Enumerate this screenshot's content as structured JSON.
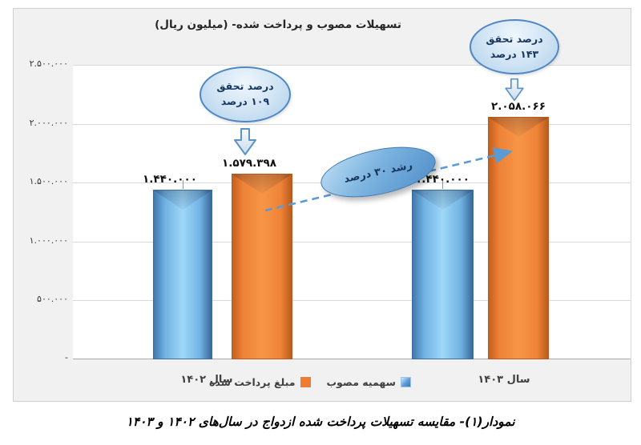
{
  "title": "تسهیلات مصوب و پرداخت شده- (میلیون ریال)",
  "caption": "نمودار(۱)- مقایسه تسهیلات پرداخت شده ازدواج در سال‌های ۱۴۰۲ و ۱۴۰۳",
  "chart_data": {
    "type": "bar",
    "title": "تسهیلات مصوب و پرداخت شده- (میلیون ریال)",
    "categories": [
      "سال ۱۴۰۲",
      "سال ۱۴۰۳"
    ],
    "series": [
      {
        "name": "سهمیه مصوب",
        "color": "#5B9BD5",
        "values": [
          1440000,
          1440000
        ],
        "labels": [
          "۱.۴۴۰.۰۰۰",
          "۱.۴۴۰.۰۰۰"
        ]
      },
      {
        "name": "مبلغ پرداخت شده",
        "color": "#ED7D31",
        "values": [
          1579398,
          2058066
        ],
        "labels": [
          "۱.۵۷۹.۳۹۸",
          "۲.۰۵۸.۰۶۶"
        ]
      }
    ],
    "ylim": [
      0,
      2500000
    ],
    "y_tick_labels": [
      "۲.۵۰۰.۰۰۰",
      "۲.۰۰۰.۰۰۰",
      "۱.۵۰۰.۰۰۰",
      "۱.۰۰۰.۰۰۰",
      "۵۰۰.۰۰۰",
      "-"
    ],
    "grid": true,
    "legend_position": "bottom",
    "annotations": [
      {
        "type": "callout",
        "line1": "درصد تحقق",
        "line2": "۱۰۹ درصد",
        "target": "مبلغ پرداخت شده سال ۱۴۰۲"
      },
      {
        "type": "callout",
        "line1": "درصد تحقق",
        "line2": "۱۴۳ درصد",
        "target": "مبلغ پرداخت شده سال ۱۴۰۳"
      },
      {
        "type": "growth-arrow",
        "text": "رشد ۳۰ درصد"
      }
    ]
  }
}
